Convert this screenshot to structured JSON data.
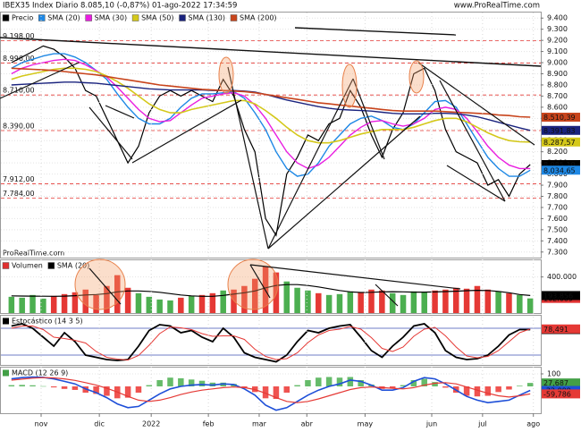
{
  "chart_data": [
    {
      "type": "line",
      "title": "IBEX35 Index Diario 8.085,10 (-0,87%) 01-ago-2022 17:34:59",
      "source": "www.ProRealTime.com",
      "watermark": "ProRealTime.com",
      "x": [
        0,
        1,
        2,
        3,
        4,
        5,
        6,
        7,
        8,
        9,
        10,
        11,
        12,
        13,
        14,
        15,
        16,
        17,
        18,
        19,
        20,
        21,
        22,
        23,
        24,
        25,
        26,
        27,
        28,
        29,
        30,
        31,
        32,
        33,
        34,
        35,
        36,
        37,
        38,
        39,
        40,
        41,
        42,
        43,
        44,
        45,
        46,
        47,
        48,
        49
      ],
      "xlim": [
        -1,
        50
      ],
      "ylim": [
        7250,
        9450
      ],
      "yticks": [
        {
          "value": 9400,
          "label": "9.400"
        },
        {
          "value": 9300,
          "label": "9.300"
        },
        {
          "value": 9200,
          "label": "9.200"
        },
        {
          "value": 9100,
          "label": "9.100"
        },
        {
          "value": 9000,
          "label": "9.000"
        },
        {
          "value": 8900,
          "label": "8.900"
        },
        {
          "value": 8800,
          "label": "8.800"
        },
        {
          "value": 8700,
          "label": "8.700"
        },
        {
          "value": 8600,
          "label": "8.600"
        },
        {
          "value": 8500,
          "label": "8.500"
        },
        {
          "value": 8400,
          "label": "8.400"
        },
        {
          "value": 8300,
          "label": "8.300"
        },
        {
          "value": 8200,
          "label": "8.200"
        },
        {
          "value": 8100,
          "label": "8.100"
        },
        {
          "value": 8000,
          "label": "8.000"
        },
        {
          "value": 7900,
          "label": "7.900"
        },
        {
          "value": 7800,
          "label": "7.800"
        },
        {
          "value": 7700,
          "label": "7.700"
        },
        {
          "value": 7600,
          "label": "7.600"
        },
        {
          "value": 7500,
          "label": "7.500"
        },
        {
          "value": 7400,
          "label": "7.400"
        },
        {
          "value": 7300,
          "label": "7.300"
        }
      ],
      "levels": [
        {
          "value": 9198,
          "label": "9.198,00"
        },
        {
          "value": 8996,
          "label": "8.996,00"
        },
        {
          "value": 8710,
          "label": "8.710,00"
        },
        {
          "value": 8390,
          "label": "8.390,00"
        },
        {
          "value": 7912,
          "label": "7.912,00"
        },
        {
          "value": 7784,
          "label": "7.784,00"
        }
      ],
      "series": [
        {
          "name": "Precio",
          "color": "#000000",
          "width": 1.2,
          "end_label": "8.085,10",
          "values": [
            9000,
            9050,
            9100,
            9150,
            9120,
            9050,
            8950,
            8750,
            8700,
            8500,
            8300,
            8100,
            8250,
            8550,
            8700,
            8750,
            8700,
            8750,
            8700,
            8650,
            8850,
            8700,
            8400,
            8200,
            7600,
            7450,
            8000,
            8150,
            8350,
            8300,
            8450,
            8500,
            8750,
            8600,
            8350,
            8150,
            8400,
            8550,
            8900,
            8950,
            8750,
            8400,
            8200,
            8150,
            8100,
            7900,
            7950,
            7800,
            8000,
            8085.1
          ]
        },
        {
          "name": "SMA (20)",
          "color": "#1e88e5",
          "width": 1.4,
          "end_label": "8.034,65",
          "values": [
            8950,
            9000,
            9030,
            9060,
            9080,
            9080,
            9050,
            9000,
            8930,
            8850,
            8720,
            8600,
            8500,
            8450,
            8450,
            8500,
            8600,
            8680,
            8720,
            8720,
            8730,
            8740,
            8680,
            8550,
            8400,
            8200,
            8050,
            7980,
            8000,
            8100,
            8250,
            8350,
            8450,
            8500,
            8520,
            8480,
            8420,
            8400,
            8450,
            8550,
            8650,
            8660,
            8600,
            8450,
            8300,
            8150,
            8050,
            7980,
            7980,
            8034.65
          ]
        },
        {
          "name": "SMA (30)",
          "color": "#e91ee0",
          "width": 1.4,
          "values": [
            8900,
            8950,
            8980,
            9000,
            9020,
            9030,
            9020,
            8980,
            8930,
            8870,
            8780,
            8680,
            8580,
            8500,
            8470,
            8480,
            8550,
            8620,
            8680,
            8700,
            8720,
            8730,
            8700,
            8620,
            8500,
            8350,
            8200,
            8100,
            8050,
            8080,
            8150,
            8250,
            8350,
            8420,
            8470,
            8480,
            8450,
            8430,
            8450,
            8500,
            8580,
            8600,
            8580,
            8500,
            8380,
            8250,
            8150,
            8080,
            8050,
            8050
          ]
        },
        {
          "name": "SMA (50)",
          "color": "#d4c81a",
          "width": 1.6,
          "end_label": "8.287,57",
          "values": [
            8850,
            8880,
            8900,
            8920,
            8940,
            8950,
            8950,
            8940,
            8920,
            8880,
            8830,
            8770,
            8700,
            8630,
            8580,
            8550,
            8550,
            8580,
            8600,
            8620,
            8640,
            8660,
            8660,
            8630,
            8570,
            8500,
            8420,
            8350,
            8300,
            8280,
            8280,
            8300,
            8330,
            8360,
            8380,
            8400,
            8400,
            8400,
            8420,
            8450,
            8480,
            8500,
            8500,
            8470,
            8420,
            8370,
            8330,
            8300,
            8290,
            8287.57
          ]
        },
        {
          "name": "SMA (130)",
          "color": "#1a237e",
          "width": 1.4,
          "end_label": "8.391,83",
          "values": [
            8800,
            8805,
            8810,
            8815,
            8820,
            8825,
            8825,
            8820,
            8815,
            8805,
            8795,
            8785,
            8775,
            8765,
            8760,
            8755,
            8755,
            8755,
            8755,
            8750,
            8750,
            8750,
            8745,
            8735,
            8715,
            8690,
            8665,
            8645,
            8625,
            8605,
            8590,
            8580,
            8575,
            8570,
            8565,
            8555,
            8545,
            8540,
            8540,
            8540,
            8545,
            8545,
            8540,
            8530,
            8515,
            8490,
            8465,
            8440,
            8415,
            8391.83
          ]
        },
        {
          "name": "SMA (200)",
          "color": "#c8441c",
          "width": 1.6,
          "end_label": "8.510,39",
          "values": [
            8950,
            8945,
            8940,
            8935,
            8930,
            8920,
            8910,
            8900,
            8890,
            8875,
            8860,
            8845,
            8830,
            8815,
            8800,
            8790,
            8780,
            8770,
            8760,
            8755,
            8750,
            8745,
            8740,
            8730,
            8715,
            8700,
            8685,
            8670,
            8655,
            8640,
            8630,
            8620,
            8610,
            8600,
            8590,
            8580,
            8570,
            8565,
            8565,
            8565,
            8565,
            8560,
            8555,
            8550,
            8545,
            8540,
            8530,
            8525,
            8515,
            8510.39
          ]
        }
      ]
    },
    {
      "type": "bar",
      "xlim": [
        -1,
        50
      ],
      "ylim": [
        0,
        585000
      ],
      "yticks": [
        {
          "value": 400000,
          "label": "400.000"
        }
      ],
      "series": [
        {
          "name": "Volumen",
          "style": "bar",
          "color": "#e03030",
          "up_color": "#4caf50",
          "down_color": "#e53935",
          "end_label": "162.089",
          "values": [
            180000,
            170000,
            200000,
            160000,
            190000,
            210000,
            230000,
            260000,
            200000,
            300000,
            420000,
            280000,
            220000,
            180000,
            150000,
            140000,
            170000,
            190000,
            200000,
            220000,
            250000,
            260000,
            300000,
            380000,
            520000,
            450000,
            350000,
            280000,
            250000,
            220000,
            200000,
            210000,
            240000,
            230000,
            260000,
            250000,
            220000,
            200000,
            240000,
            230000,
            250000,
            260000,
            280000,
            270000,
            300000,
            260000,
            240000,
            220000,
            200000,
            162089
          ]
        },
        {
          "name": "SMA (20)",
          "style": "line",
          "color": "#000000",
          "end_label": "193.856",
          "values": [
            190000,
            188000,
            187000,
            186000,
            185000,
            187000,
            192000,
            200000,
            205000,
            215000,
            235000,
            245000,
            245000,
            240000,
            230000,
            215000,
            200000,
            190000,
            185000,
            185000,
            195000,
            210000,
            225000,
            245000,
            280000,
            305000,
            315000,
            315000,
            305000,
            290000,
            270000,
            250000,
            235000,
            228000,
            230000,
            235000,
            237000,
            235000,
            232000,
            232000,
            234000,
            238000,
            242000,
            248000,
            252000,
            250000,
            240000,
            225000,
            205000,
            193856
          ]
        }
      ]
    },
    {
      "type": "line",
      "title": "Estocástico (14 3 5)",
      "xlim": [
        -1,
        50
      ],
      "ylim": [
        -2,
        108
      ],
      "bands": [
        20,
        80
      ],
      "series": [
        {
          "style": "line",
          "color": "#000000",
          "width": 1.8,
          "end_label": "77,084",
          "values": [
            85,
            90,
            80,
            60,
            40,
            70,
            50,
            20,
            15,
            10,
            8,
            10,
            40,
            75,
            88,
            85,
            70,
            75,
            60,
            50,
            80,
            60,
            25,
            15,
            10,
            5,
            20,
            50,
            75,
            70,
            80,
            85,
            88,
            60,
            30,
            15,
            40,
            60,
            85,
            90,
            70,
            30,
            15,
            10,
            12,
            20,
            40,
            65,
            77.084,
            77.084
          ]
        },
        {
          "style": "line",
          "color": "#e53935",
          "width": 1,
          "end_label": "78,491",
          "values": [
            80,
            85,
            85,
            77,
            60,
            57,
            53,
            47,
            28,
            15,
            11,
            9,
            19,
            42,
            68,
            83,
            81,
            77,
            68,
            62,
            63,
            63,
            55,
            33,
            17,
            10,
            12,
            25,
            48,
            65,
            75,
            78,
            84,
            78,
            59,
            35,
            28,
            38,
            62,
            78,
            82,
            63,
            38,
            18,
            14,
            17,
            30,
            50,
            70,
            78.491
          ]
        }
      ]
    },
    {
      "type": "line",
      "title": "MACD (12 26 9)",
      "xlim": [
        -1,
        50
      ],
      "ylim": [
        -214,
        150
      ],
      "yticks": [
        100
      ],
      "xticks": [
        {
          "value": 2.8,
          "label": "nov"
        },
        {
          "value": 8.3,
          "label": "dic"
        },
        {
          "value": 13.2,
          "label": "2022"
        },
        {
          "value": 18.6,
          "label": "feb"
        },
        {
          "value": 23.4,
          "label": "mar"
        },
        {
          "value": 27.9,
          "label": "abr"
        },
        {
          "value": 33.4,
          "label": "may"
        },
        {
          "value": 39.7,
          "label": "jun"
        },
        {
          "value": 44.5,
          "label": "jul"
        },
        {
          "value": 49.3,
          "label": "ago"
        }
      ],
      "series": [
        {
          "style": "bar",
          "color": "#43a047",
          "up_color": "#66bb6a",
          "down_color": "#ef5350",
          "end_label": "27,687",
          "values": [
            10,
            12,
            9,
            2,
            -8,
            -20,
            -28,
            -50,
            -60,
            -75,
            -95,
            -90,
            -50,
            10,
            50,
            70,
            65,
            55,
            45,
            30,
            30,
            20,
            -10,
            -45,
            -95,
            -100,
            -50,
            10,
            50,
            70,
            75,
            70,
            75,
            50,
            15,
            -20,
            -15,
            10,
            50,
            60,
            35,
            -10,
            -50,
            -75,
            -80,
            -75,
            -45,
            -25,
            5,
            27.687
          ]
        },
        {
          "style": "line",
          "color": "#1e4fd8",
          "width": 1.6,
          "end_label": "-32,099",
          "values": [
            60,
            70,
            75,
            72,
            60,
            40,
            20,
            -20,
            -50,
            -90,
            -140,
            -170,
            -160,
            -110,
            -60,
            -20,
            0,
            10,
            15,
            10,
            20,
            15,
            -20,
            -70,
            -150,
            -190,
            -170,
            -120,
            -70,
            -30,
            0,
            20,
            50,
            40,
            10,
            -30,
            -30,
            -10,
            40,
            70,
            60,
            20,
            -30,
            -80,
            -110,
            -130,
            -120,
            -110,
            -70,
            -32.099
          ]
        },
        {
          "style": "line",
          "color": "#e53935",
          "width": 1.2,
          "end_label": "-59,786",
          "values": [
            50,
            58,
            66,
            70,
            68,
            60,
            48,
            30,
            10,
            -15,
            -45,
            -80,
            -110,
            -120,
            -110,
            -90,
            -65,
            -45,
            -30,
            -20,
            -10,
            -5,
            -10,
            -25,
            -55,
            -90,
            -120,
            -130,
            -120,
            -100,
            -75,
            -50,
            -25,
            -10,
            -5,
            -10,
            -15,
            -20,
            -10,
            10,
            25,
            30,
            20,
            -5,
            -30,
            -55,
            -75,
            -85,
            -75,
            -59.786
          ]
        }
      ]
    }
  ]
}
